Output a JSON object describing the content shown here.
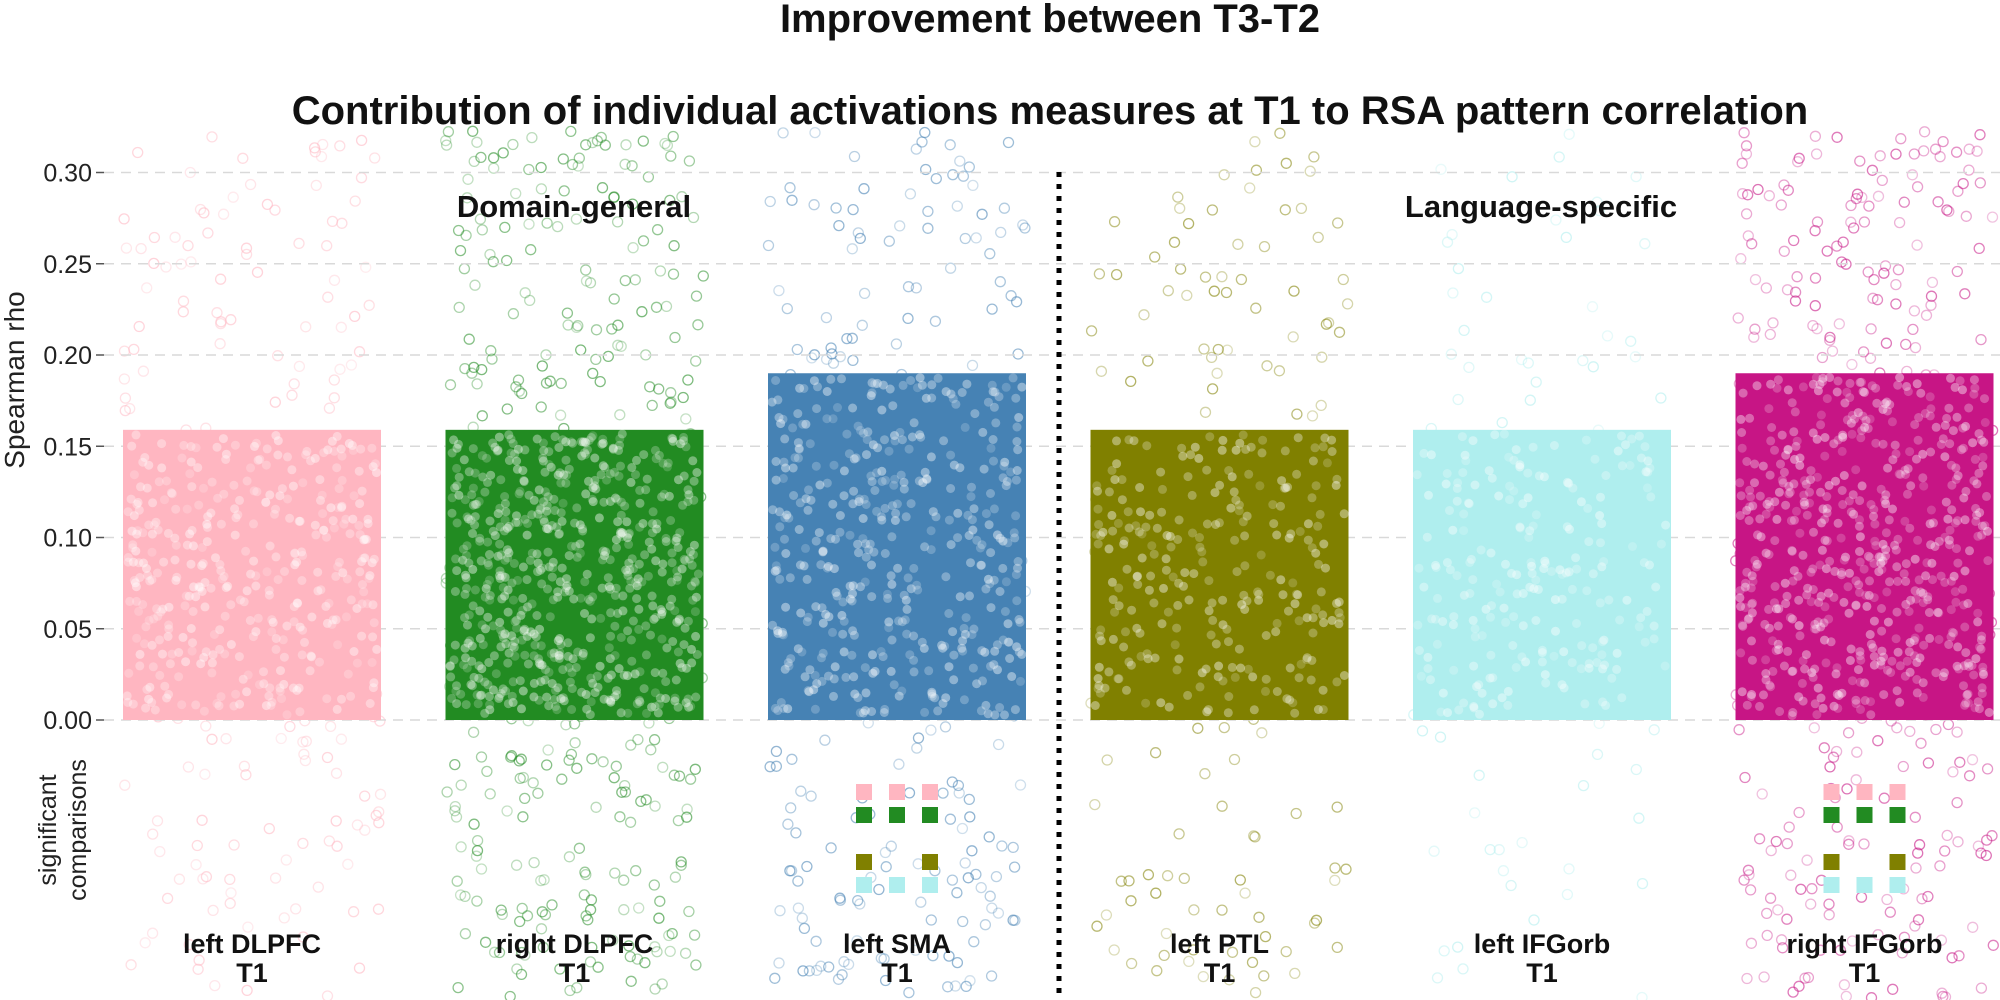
{
  "chart_data": {
    "type": "bar",
    "title": "Improvement between T3-T2",
    "subtitle": "Contribution of individual activations measures at T1 to RSA pattern correlation",
    "ylabel": "Spearman rho",
    "sig_label_line1": "significant",
    "sig_label_line2": "comparisons",
    "ylim": [
      0,
      0.31
    ],
    "yticks": [
      "0.00",
      "0.05",
      "0.10",
      "0.15",
      "0.20",
      "0.25",
      "0.30"
    ],
    "ytick_values": [
      0.0,
      0.05,
      0.1,
      0.15,
      0.2,
      0.25,
      0.3
    ],
    "groups": [
      "Domain-general",
      "Language-specific"
    ],
    "categories": [
      {
        "name": "left DLPFC",
        "sub": "T1",
        "value": 0.159,
        "color": "#ffb6c1",
        "group": "Domain-general"
      },
      {
        "name": "right DLPFC",
        "sub": "T1",
        "value": 0.159,
        "color": "#228b22",
        "group": "Domain-general"
      },
      {
        "name": "left SMA",
        "sub": "T1",
        "value": 0.19,
        "color": "#4682b4",
        "group": "Domain-general"
      },
      {
        "name": "left PTL",
        "sub": "T1",
        "value": 0.159,
        "color": "#808000",
        "group": "Language-specific"
      },
      {
        "name": "left IFGorb",
        "sub": "T1",
        "value": 0.159,
        "color": "#afeeee",
        "group": "Language-specific"
      },
      {
        "name": "right IFGorb",
        "sub": "T1",
        "value": 0.19,
        "color": "#c71585",
        "group": "Language-specific"
      }
    ],
    "significant_comparisons": [
      {
        "bar": 2,
        "rows": [
          [
            "left DLPFC",
            "left DLPFC",
            "left DLPFC"
          ],
          [
            "right DLPFC",
            "right DLPFC",
            "right DLPFC"
          ],
          [
            null,
            null,
            null
          ],
          [
            "left PTL",
            null,
            "left PTL"
          ],
          [
            "left IFGorb",
            "left IFGorb",
            "left IFGorb"
          ]
        ]
      },
      {
        "bar": 5,
        "rows": [
          [
            "left DLPFC",
            "left DLPFC",
            "left DLPFC"
          ],
          [
            "right DLPFC",
            "right DLPFC",
            "right DLPFC"
          ],
          [
            null,
            null,
            null
          ],
          [
            "left PTL",
            null,
            "left PTL"
          ],
          [
            "left IFGorb",
            "left IFGorb",
            "left IFGorb"
          ]
        ]
      }
    ]
  }
}
